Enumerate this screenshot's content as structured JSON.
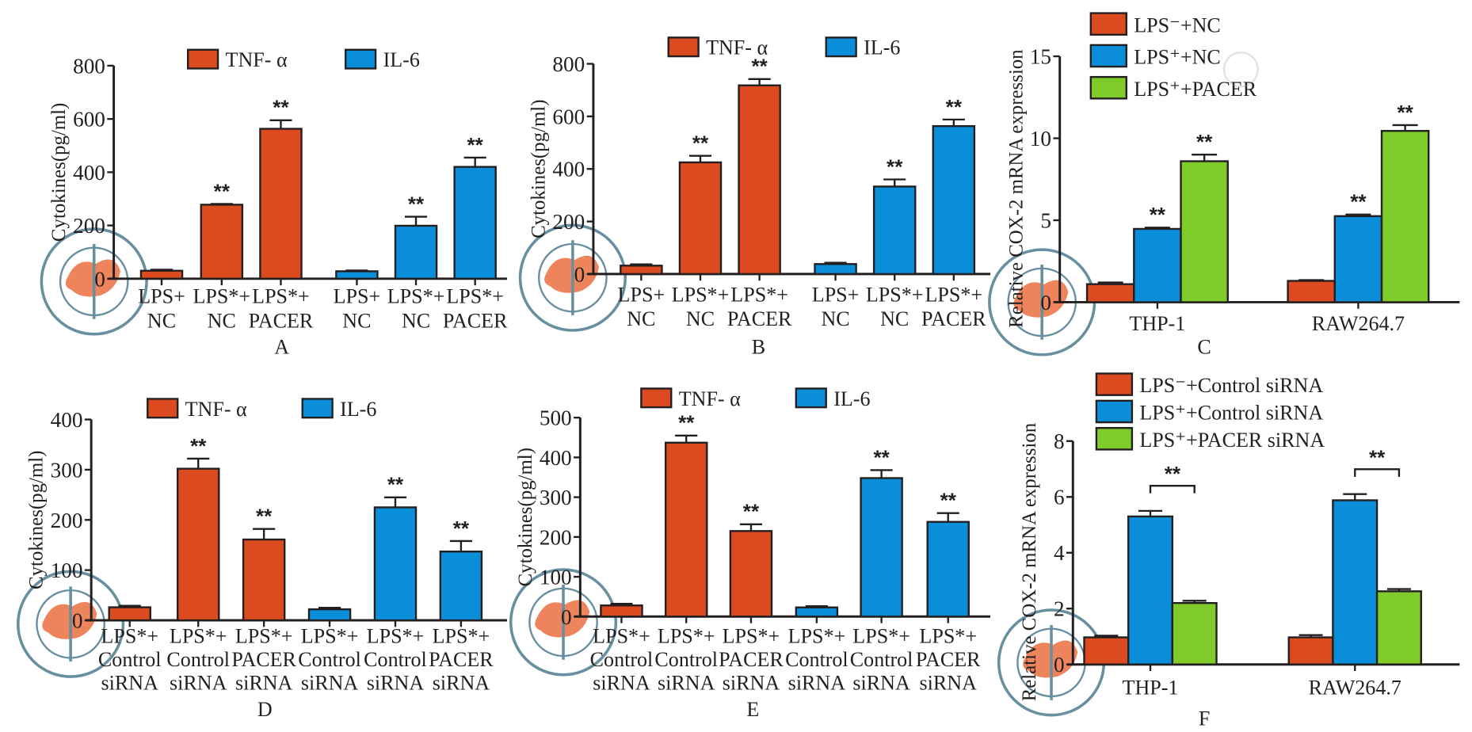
{
  "colors": {
    "tnf": "#dc4a20",
    "il6": "#0b8ed9",
    "pacer": "#7fcb2a",
    "axis": "#231f20"
  },
  "chart_data": [
    {
      "panel": "A",
      "type": "bar",
      "ylabel": "Cytokines(pg/ml)",
      "ylim": [
        0,
        800
      ],
      "yticks": [
        0,
        200,
        400,
        600,
        800
      ],
      "categories": [
        [
          "LPS+",
          "NC"
        ],
        [
          "LPS*+",
          "NC"
        ],
        [
          "LPS*+",
          "PACER"
        ],
        [
          "LPS+",
          "NC"
        ],
        [
          "LPS*+",
          "NC"
        ],
        [
          "LPS*+",
          "PACER"
        ]
      ],
      "series": [
        {
          "name": "TNF- α",
          "color": "#dc4a20",
          "values": [
            30,
            278,
            563,
            null,
            null,
            null
          ],
          "errors": [
            34,
            281,
            595,
            null,
            null,
            null
          ],
          "sig": [
            "",
            "**",
            "**",
            "",
            "",
            ""
          ]
        },
        {
          "name": "IL-6",
          "color": "#0b8ed9",
          "values": [
            null,
            null,
            null,
            28,
            199,
            420
          ],
          "errors": [
            null,
            null,
            null,
            31,
            233,
            455
          ],
          "sig": [
            "",
            "",
            "",
            "",
            "**",
            "**"
          ]
        }
      ]
    },
    {
      "panel": "B",
      "type": "bar",
      "ylabel": "Cytokines(pg/ml)",
      "ylim": [
        0,
        800
      ],
      "yticks": [
        0,
        200,
        400,
        600,
        800
      ],
      "categories": [
        [
          "LPS+",
          "NC"
        ],
        [
          "LPS*+",
          "NC"
        ],
        [
          "LPS*+",
          "PACER"
        ],
        [
          "LPS+",
          "NC"
        ],
        [
          "LPS*+",
          "NC"
        ],
        [
          "LPS*+",
          "PACER"
        ]
      ],
      "series": [
        {
          "name": "TNF- α",
          "color": "#dc4a20",
          "values": [
            32,
            425,
            718,
            null,
            null,
            null
          ],
          "errors": [
            37,
            450,
            742,
            null,
            null,
            null
          ],
          "sig": [
            "",
            "**",
            "**",
            "",
            "",
            ""
          ]
        },
        {
          "name": "IL-6",
          "color": "#0b8ed9",
          "values": [
            null,
            null,
            null,
            38,
            333,
            563
          ],
          "errors": [
            null,
            null,
            null,
            43,
            360,
            588
          ],
          "sig": [
            "",
            "",
            "",
            "",
            "**",
            "**"
          ]
        }
      ]
    },
    {
      "panel": "C",
      "type": "grouped-bar",
      "ylabel": "Relative COX-2 mRNA expression",
      "ylim": [
        0,
        15
      ],
      "yticks": [
        0,
        5,
        10,
        15
      ],
      "categories": [
        "THP-1",
        "RAW264.7"
      ],
      "series": [
        {
          "name": "LPS⁻+NC",
          "color": "#dc4a20",
          "values": [
            1.1,
            1.3
          ],
          "errors": [
            1.2,
            1.35
          ],
          "sig": [
            "",
            ""
          ]
        },
        {
          "name": "LPS⁺+NC",
          "color": "#0b8ed9",
          "values": [
            4.47,
            5.25
          ],
          "errors": [
            4.55,
            5.35
          ],
          "sig": [
            "**",
            "**"
          ]
        },
        {
          "name": "LPS⁺+PACER",
          "color": "#7fcb2a",
          "values": [
            8.6,
            10.45
          ],
          "errors": [
            9.0,
            10.8
          ],
          "sig": [
            "**",
            "**"
          ]
        }
      ]
    },
    {
      "panel": "D",
      "type": "bar",
      "ylabel": "Cytokines(pg/ml)",
      "ylim": [
        0,
        400
      ],
      "yticks": [
        0,
        100,
        200,
        300,
        400
      ],
      "categories": [
        [
          "LPS*+",
          "Control",
          "siRNA"
        ],
        [
          "LPS*+",
          "Control",
          "siRNA"
        ],
        [
          "LPS*+",
          "PACER",
          "siRNA"
        ],
        [
          "LPS*+",
          "Control",
          "siRNA"
        ],
        [
          "LPS*+",
          "Control",
          "siRNA"
        ],
        [
          "LPS*+",
          "PACER",
          "siRNA"
        ]
      ],
      "series": [
        {
          "name": "TNF- α",
          "color": "#dc4a20",
          "values": [
            26,
            302,
            161,
            null,
            null,
            null
          ],
          "errors": [
            29,
            322,
            182,
            null,
            null,
            null
          ],
          "sig": [
            "",
            "**",
            "**",
            "",
            "",
            ""
          ]
        },
        {
          "name": "IL-6",
          "color": "#0b8ed9",
          "values": [
            null,
            null,
            null,
            22,
            225,
            137
          ],
          "errors": [
            null,
            null,
            null,
            25,
            245,
            158
          ],
          "sig": [
            "",
            "",
            "",
            "",
            "**",
            "**"
          ]
        }
      ]
    },
    {
      "panel": "E",
      "type": "bar",
      "ylabel": "Cytokines(pg/ml)",
      "ylim": [
        0,
        500
      ],
      "yticks": [
        0,
        100,
        200,
        300,
        400,
        500
      ],
      "categories": [
        [
          "LPS*+",
          "Control",
          "siRNA"
        ],
        [
          "LPS*+",
          "Control",
          "siRNA"
        ],
        [
          "LPS*+",
          "PACER",
          "siRNA"
        ],
        [
          "LPS*+",
          "Control",
          "siRNA"
        ],
        [
          "LPS*+",
          "Control",
          "siRNA"
        ],
        [
          "LPS*+",
          "PACER",
          "siRNA"
        ]
      ],
      "series": [
        {
          "name": "TNF- α",
          "color": "#dc4a20",
          "values": [
            28,
            437,
            215,
            null,
            null,
            null
          ],
          "errors": [
            32,
            455,
            232,
            null,
            null,
            null
          ],
          "sig": [
            "",
            "**",
            "**",
            "",
            "",
            ""
          ]
        },
        {
          "name": "IL-6",
          "color": "#0b8ed9",
          "values": [
            null,
            null,
            null,
            23,
            348,
            238
          ],
          "errors": [
            null,
            null,
            null,
            26,
            368,
            260
          ],
          "sig": [
            "",
            "",
            "",
            "",
            "**",
            "**"
          ]
        }
      ]
    },
    {
      "panel": "F",
      "type": "grouped-bar",
      "ylabel": "Relative COX-2 mRNA expression",
      "ylim": [
        0,
        8
      ],
      "yticks": [
        0,
        2,
        4,
        6,
        8
      ],
      "categories": [
        "THP-1",
        "RAW264.7"
      ],
      "series": [
        {
          "name": "LPS⁻+Control siRNA",
          "color": "#dc4a20",
          "values": [
            0.97,
            0.97
          ],
          "errors": [
            1.03,
            1.05
          ],
          "sig": [
            "",
            ""
          ]
        },
        {
          "name": "LPS⁺+Control siRNA",
          "color": "#0b8ed9",
          "values": [
            5.3,
            5.88
          ],
          "errors": [
            5.5,
            6.1
          ],
          "sig": [
            "",
            ""
          ]
        },
        {
          "name": "LPS⁺+PACER siRNA",
          "color": "#7fcb2a",
          "values": [
            2.2,
            2.62
          ],
          "errors": [
            2.28,
            2.7
          ],
          "sig": [
            "",
            ""
          ]
        }
      ],
      "brackets": [
        {
          "category": "THP-1",
          "from_series": 1,
          "to_series": 2,
          "level": 6.4,
          "label": "**"
        },
        {
          "category": "RAW264.7",
          "from_series": 1,
          "to_series": 2,
          "level": 6.99,
          "label": "**"
        }
      ]
    }
  ]
}
